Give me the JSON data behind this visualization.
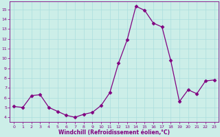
{
  "x": [
    0,
    1,
    2,
    3,
    4,
    5,
    6,
    7,
    8,
    9,
    10,
    11,
    12,
    13,
    14,
    15,
    16,
    17,
    18,
    19,
    20,
    21,
    22,
    23
  ],
  "y": [
    5.1,
    5.0,
    6.2,
    6.3,
    5.0,
    4.6,
    4.2,
    4.0,
    4.3,
    4.5,
    5.2,
    6.5,
    9.5,
    11.9,
    15.3,
    14.9,
    13.6,
    13.2,
    9.8,
    5.6,
    6.8,
    6.4,
    7.7,
    7.8
  ],
  "line_color": "#800080",
  "marker": "D",
  "marker_size": 2.5,
  "background_color": "#cceee8",
  "grid_color": "#aadddd",
  "xlabel": "Windchill (Refroidissement éolien,°C)",
  "xlabel_color": "#800080",
  "tick_color": "#800080",
  "ylabel_ticks": [
    4,
    5,
    6,
    7,
    8,
    9,
    10,
    11,
    12,
    13,
    14,
    15
  ],
  "ylim": [
    3.5,
    15.8
  ],
  "xlim": [
    -0.5,
    23.5
  ],
  "xticks": [
    0,
    1,
    2,
    3,
    4,
    5,
    6,
    7,
    8,
    9,
    10,
    11,
    12,
    13,
    14,
    15,
    16,
    17,
    18,
    19,
    20,
    21,
    22,
    23
  ],
  "figsize": [
    3.2,
    2.0
  ],
  "dpi": 100
}
